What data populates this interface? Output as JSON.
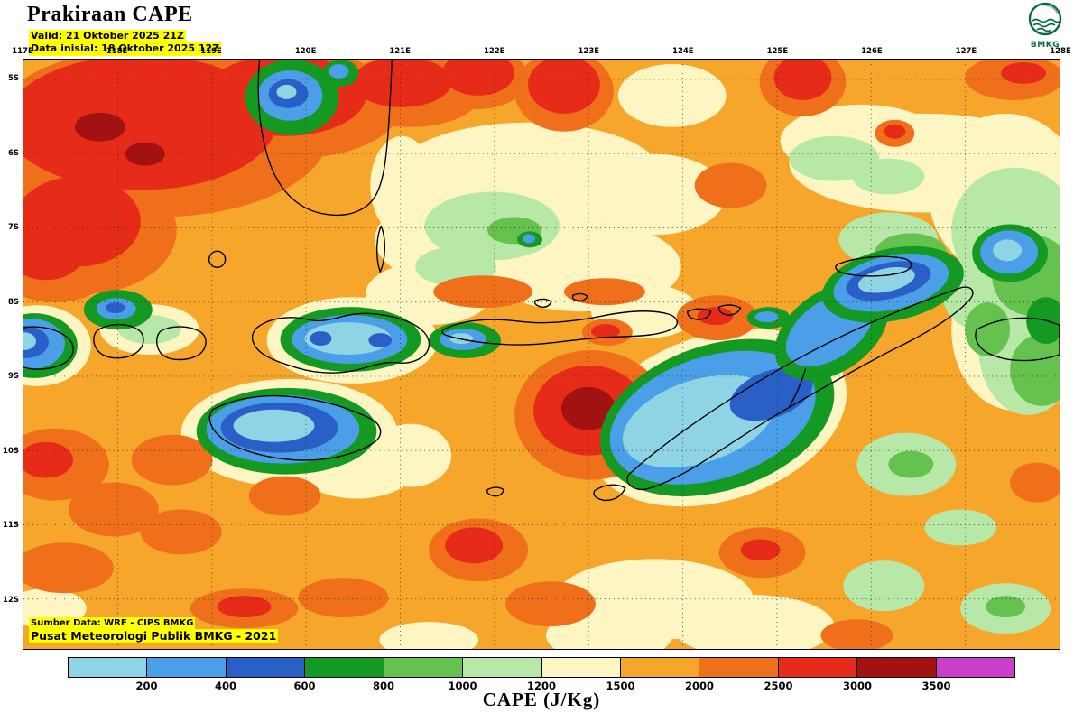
{
  "colors": {
    "highlight": "#ffff00",
    "background": "#ffffff",
    "frame": "#000000",
    "logo_green": "#0a6b3c"
  },
  "header": {
    "title": "Prakiraan CAPE",
    "valid_line": "Valid: 21 Oktober 2025 21Z",
    "init_line": "Data inisial: 18 Oktober 2025 12Z",
    "logo_label": "BMKG"
  },
  "map": {
    "lon_labels": [
      "117E",
      "118E",
      "119E",
      "120E",
      "121E",
      "122E",
      "123E",
      "124E",
      "125E",
      "126E",
      "127E",
      "128E"
    ],
    "lat_labels": [
      "5S",
      "6S",
      "7S",
      "8S",
      "9S",
      "10S",
      "11S",
      "12S"
    ],
    "source_line1": "Sumber Data: WRF - CIPS BMKG",
    "source_line2": "Pusat Meteorologi Publik BMKG - 2021"
  },
  "legend": {
    "title": "CAPE (J/Kg)",
    "tick_labels": [
      "200",
      "400",
      "600",
      "800",
      "1000",
      "1200",
      "1500",
      "2000",
      "2500",
      "3000",
      "3500"
    ],
    "colors": [
      "#8ed4e4",
      "#4a9fe8",
      "#2a5fc8",
      "#149a22",
      "#65c24f",
      "#b8e8a8",
      "#fdf6c3",
      "#f7a62c",
      "#ef6f1a",
      "#e62b18",
      "#a31212",
      "#ca3fc9"
    ]
  },
  "chart_data": {
    "type": "heatmap",
    "title": "Prakiraan CAPE",
    "variable": "CAPE",
    "units": "J/Kg",
    "valid": "21 Oktober 2025 21Z",
    "initial": "18 Oktober 2025 12Z",
    "x_ticks": [
      "117E",
      "118E",
      "119E",
      "120E",
      "121E",
      "122E",
      "123E",
      "124E",
      "125E",
      "126E",
      "127E",
      "128E"
    ],
    "y_ticks": [
      "5S",
      "6S",
      "7S",
      "8S",
      "9S",
      "10S",
      "11S",
      "12S"
    ],
    "contour_levels": [
      200,
      400,
      600,
      800,
      1000,
      1200,
      1500,
      2000,
      2500,
      3000,
      3500
    ],
    "level_colors": [
      "#8ed4e4",
      "#4a9fe8",
      "#2a5fc8",
      "#149a22",
      "#65c24f",
      "#b8e8a8",
      "#fdf6c3",
      "#f7a62c",
      "#ef6f1a",
      "#e62b18",
      "#a31212",
      "#ca3fc9"
    ],
    "source": "WRF - CIPS BMKG"
  }
}
